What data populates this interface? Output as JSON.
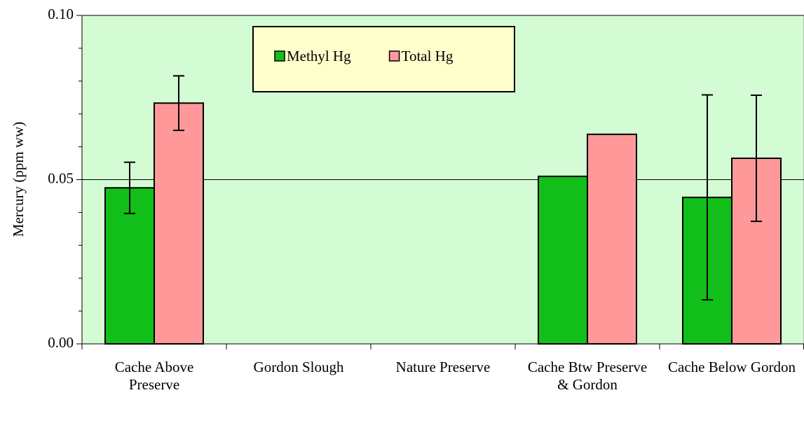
{
  "chart_data": {
    "type": "bar",
    "ylabel": "Mercury (ppm ww)",
    "categories": [
      "Cache Above Preserve",
      "Gordon Slough",
      "Nature Preserve",
      "Cache Btw Preserve & Gordon",
      "Cache Below Gordon"
    ],
    "series": [
      {
        "name": "Methyl Hg",
        "color": "#12bf1a",
        "values": [
          0.0475,
          null,
          null,
          0.051,
          0.0446
        ],
        "errors": [
          0.0078,
          null,
          null,
          null,
          0.0312
        ]
      },
      {
        "name": "Total Hg",
        "color": "#ff9999",
        "values": [
          0.0733,
          null,
          null,
          0.0638,
          0.0565
        ],
        "errors": [
          0.0083,
          null,
          null,
          null,
          0.0192
        ]
      }
    ],
    "ylim": [
      0,
      0.1
    ],
    "yticks": [
      {
        "value": 0,
        "label": "0.00"
      },
      {
        "value": 0.05,
        "label": "0.05"
      },
      {
        "value": 0.1,
        "label": "0.10"
      }
    ],
    "minor_yticks": [
      0.01,
      0.02,
      0.03,
      0.04,
      0.06,
      0.07,
      0.08,
      0.09
    ],
    "grid": true,
    "plot_background": "#d4fcd4",
    "legend": {
      "position": "top",
      "background": "#ffffcc"
    }
  }
}
